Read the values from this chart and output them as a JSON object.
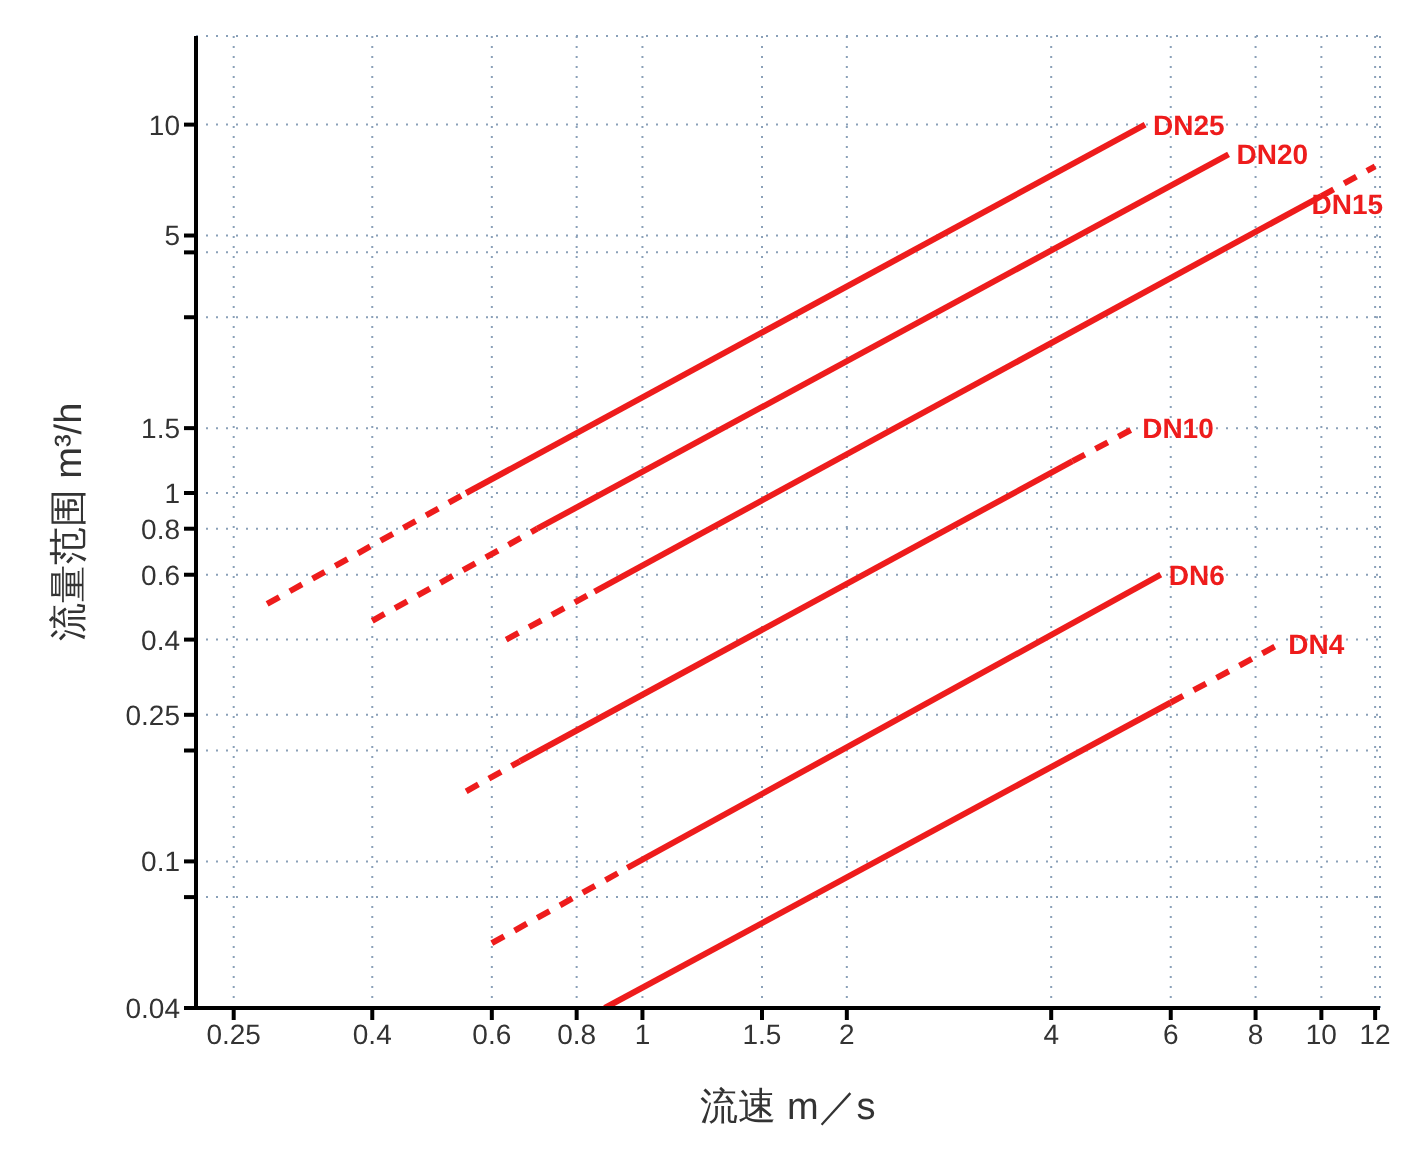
{
  "chart_data": {
    "type": "line",
    "xlabel": "流速 m／s",
    "ylabel": "流量范围 m³/h",
    "log": "xy",
    "grid": true,
    "marker": "none",
    "xlim": [
      0.22,
      12.2
    ],
    "xticks": [
      0.25,
      0.4,
      0.6,
      0.8,
      1,
      1.5,
      2,
      4,
      6,
      8,
      10,
      12
    ],
    "ylim": [
      0.04,
      17.4
    ],
    "yticks": [
      0.04,
      {
        "value": 0.08,
        "label": null
      },
      0.1,
      {
        "value": 0.2,
        "label": null
      },
      0.25,
      0.4,
      0.6,
      0.8,
      1,
      1.5,
      {
        "value": 3,
        "label": null
      },
      {
        "value": 4.5,
        "label": null
      },
      5,
      10
    ],
    "series": [
      {
        "color": "#ee1c1c",
        "line_style": "dashed",
        "x": [
          0.28,
          0.55
        ],
        "values": [
          0.5,
          1
        ]
      },
      {
        "name": "DN25",
        "color": "#ee1c1c",
        "line_style": "solid",
        "x": [
          0.55,
          5.5
        ],
        "values": [
          1,
          10
        ]
      },
      {
        "color": "#ee1c1c",
        "line_style": "dashed",
        "x": [
          0.4,
          0.7
        ],
        "values": [
          0.45,
          0.8
        ]
      },
      {
        "name": "DN20",
        "color": "#ee1c1c",
        "line_style": "solid",
        "x": [
          0.7,
          7.3
        ],
        "values": [
          0.8,
          8.3
        ]
      },
      {
        "color": "#ee1c1c",
        "line_style": "dashed",
        "x": [
          0.63,
          0.85
        ],
        "values": [
          0.4,
          0.54
        ]
      },
      {
        "color": "#ee1c1c",
        "line_style": "solid",
        "x": [
          0.85,
          10
        ],
        "values": [
          0.54,
          6.4
        ]
      },
      {
        "name": "DN15",
        "color": "#ee1c1c",
        "line_style": "dashed",
        "x": [
          10,
          12
        ],
        "values": [
          6.4,
          7.7
        ]
      },
      {
        "color": "#ee1c1c",
        "line_style": "dashed",
        "x": [
          0.55,
          0.66
        ],
        "values": [
          0.155,
          0.187
        ]
      },
      {
        "color": "#ee1c1c",
        "line_style": "solid",
        "x": [
          0.66,
          4.3
        ],
        "values": [
          0.187,
          1.22
        ]
      },
      {
        "name": "DN10",
        "color": "#ee1c1c",
        "line_style": "dashed",
        "x": [
          4.3,
          5.3
        ],
        "values": [
          1.22,
          1.5
        ]
      },
      {
        "color": "#ee1c1c",
        "line_style": "dashed",
        "x": [
          0.6,
          0.95
        ],
        "values": [
          0.06,
          0.096
        ]
      },
      {
        "name": "DN6",
        "color": "#ee1c1c",
        "line_style": "solid",
        "x": [
          0.95,
          5.8
        ],
        "values": [
          0.096,
          0.6
        ]
      },
      {
        "color": "#ee1c1c",
        "line_style": "solid",
        "x": [
          0.88,
          6
        ],
        "values": [
          0.04,
          0.27
        ]
      },
      {
        "name": "DN4",
        "color": "#ee1c1c",
        "line_style": "dashed",
        "x": [
          6,
          8.7
        ],
        "values": [
          0.27,
          0.39
        ]
      }
    ]
  }
}
